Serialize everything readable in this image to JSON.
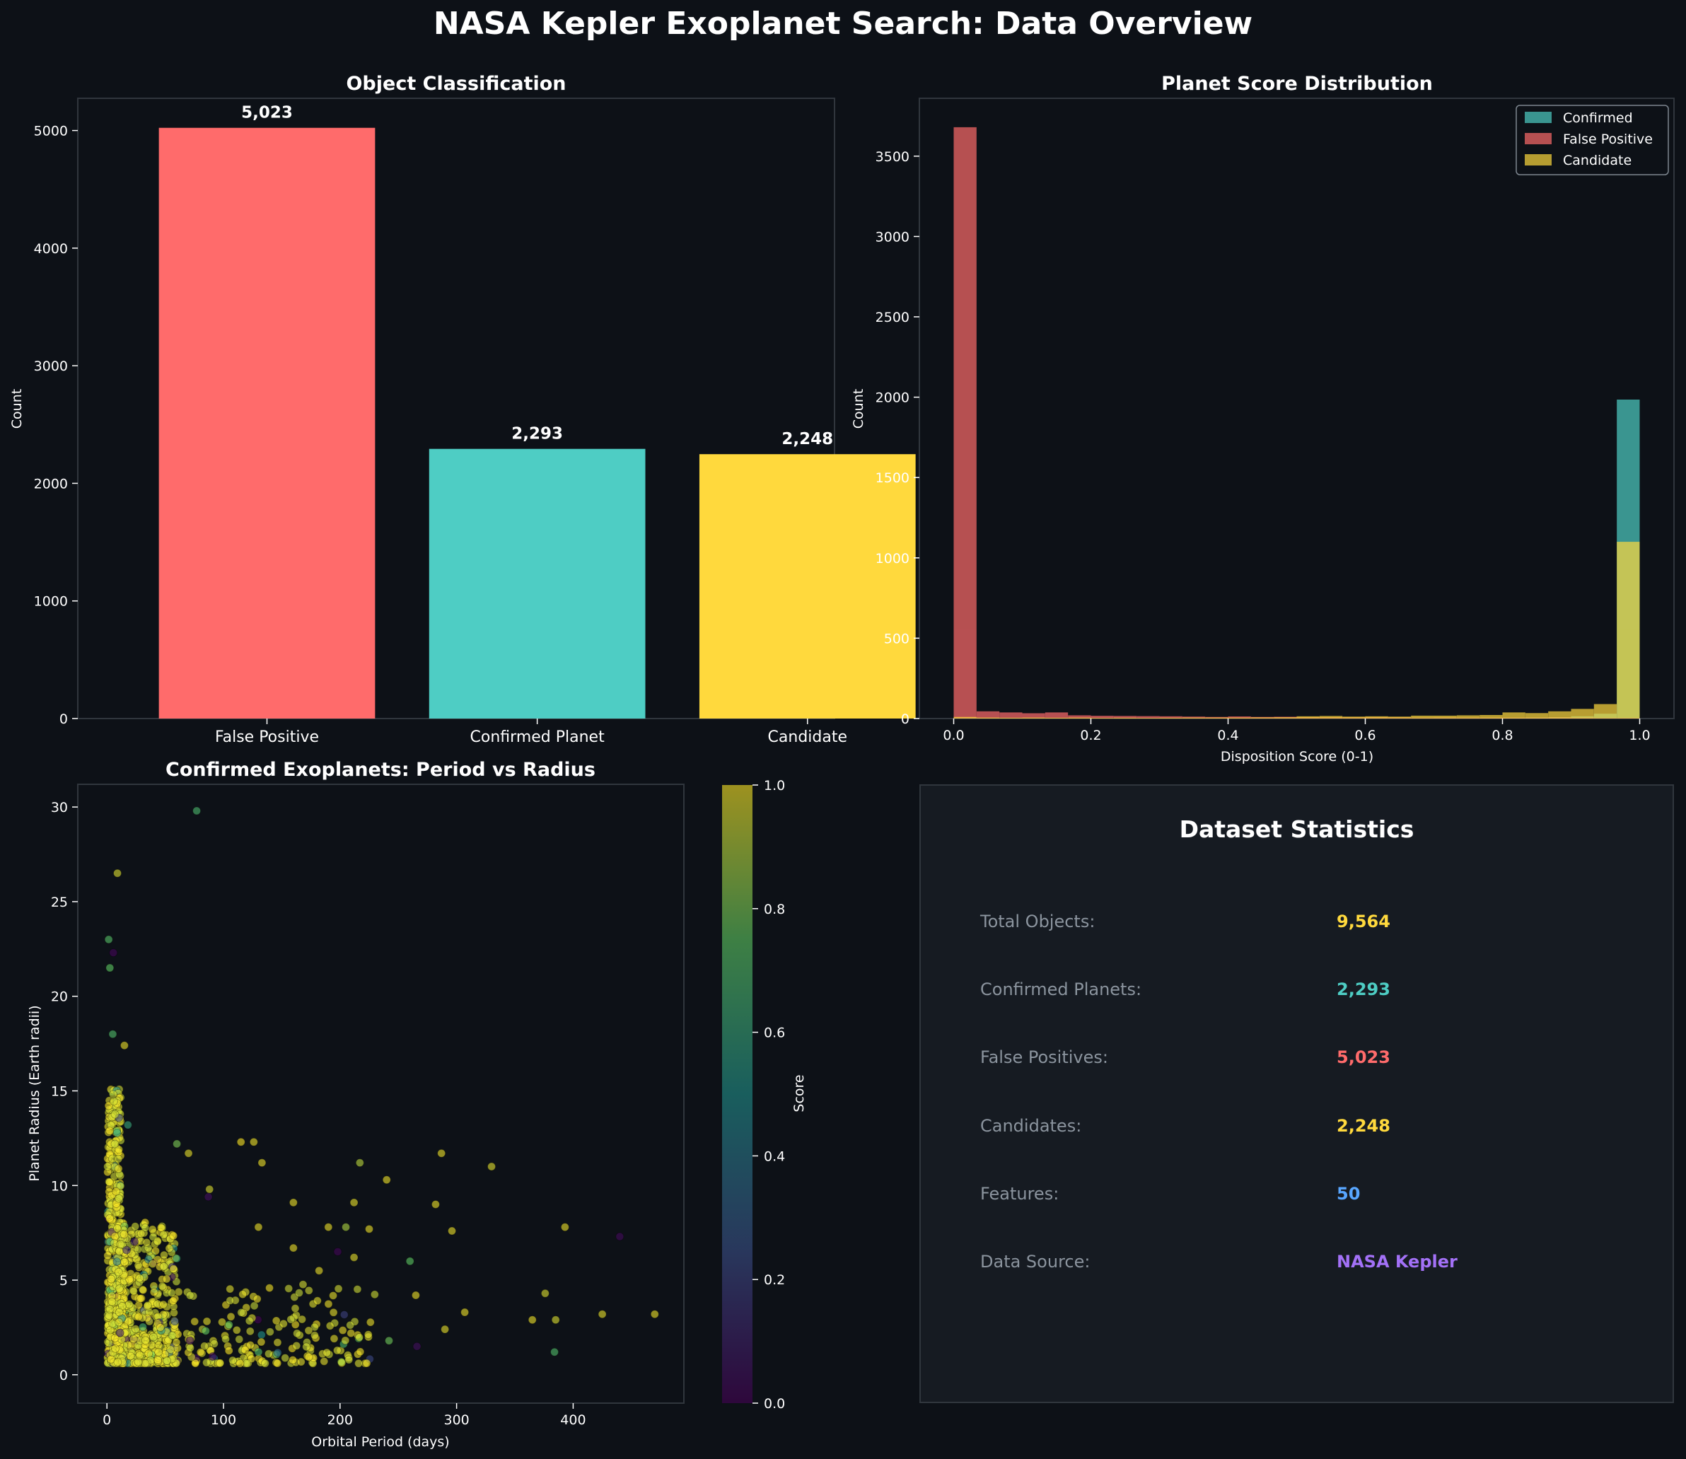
{
  "figure_title": "NASA Kepler Exoplanet Search: Data Overview",
  "colors": {
    "background": "#0d1117",
    "panel": "#0d1117",
    "false_positive": "#ff6b6b",
    "confirmed": "#4ecdc4",
    "candidate": "#ffd93d",
    "features": "#58a6ff",
    "source": "#a371f7"
  },
  "chart_data": [
    {
      "type": "bar",
      "title": "Object Classification",
      "categories": [
        "False Positive",
        "Confirmed Planet",
        "Candidate"
      ],
      "values": [
        5023,
        2293,
        2248
      ],
      "value_labels": [
        "5,023",
        "2,293",
        "2,248"
      ],
      "colors": [
        "#ff6b6b",
        "#4ecdc4",
        "#ffd93d"
      ],
      "xlabel": "",
      "ylabel": "Count",
      "ylim": [
        0,
        5274
      ],
      "yticks": [
        0,
        1000,
        2000,
        3000,
        4000,
        5000
      ]
    },
    {
      "type": "histogram",
      "title": "Planet Score Distribution",
      "xlabel": "Disposition Score (0-1)",
      "ylabel": "Count",
      "xlim": [
        -0.05,
        1.05
      ],
      "ylim": [
        0,
        3860
      ],
      "xticks": [
        0.0,
        0.2,
        0.4,
        0.6,
        0.8,
        1.0
      ],
      "xtick_labels": [
        "0.0",
        "0.2",
        "0.4",
        "0.6",
        "0.8",
        "1.0"
      ],
      "yticks": [
        0,
        500,
        1000,
        1500,
        2000,
        2500,
        3000,
        3500
      ],
      "bins": 30,
      "bin_range": [
        0,
        1
      ],
      "legend_position": "top-right",
      "series": [
        {
          "name": "Confirmed",
          "color": "#4ecdc4",
          "counts": [
            4,
            1,
            1,
            0,
            0,
            0,
            0,
            0,
            0,
            0,
            0,
            0,
            0,
            0,
            1,
            0,
            0,
            0,
            1,
            0,
            1,
            2,
            1,
            2,
            4,
            6,
            8,
            14,
            30,
            1985
          ]
        },
        {
          "name": "False Positive",
          "color": "#ff6b6b",
          "counts": [
            3680,
            45,
            38,
            33,
            38,
            20,
            17,
            16,
            15,
            14,
            12,
            10,
            13,
            10,
            11,
            9,
            9,
            8,
            9,
            8,
            6,
            7,
            6,
            6,
            6,
            6,
            7,
            6,
            4,
            4
          ]
        },
        {
          "name": "Candidate",
          "color": "#ffd93d",
          "counts": [
            10,
            6,
            5,
            6,
            5,
            6,
            4,
            5,
            4,
            5,
            6,
            6,
            6,
            7,
            8,
            14,
            16,
            12,
            14,
            12,
            18,
            18,
            20,
            22,
            38,
            34,
            45,
            60,
            90,
            1100
          ]
        }
      ]
    },
    {
      "type": "scatter",
      "title": "Confirmed Exoplanets: Period vs Radius",
      "xlabel": "Orbital Period (days)",
      "ylabel": "Planet Radius (Earth radii)",
      "xlim": [
        -25,
        495
      ],
      "ylim": [
        -1.5,
        31.2
      ],
      "xticks": [
        0,
        100,
        200,
        300,
        400
      ],
      "yticks": [
        0,
        5,
        10,
        15,
        20,
        25,
        30
      ],
      "colorbar_label": "Score",
      "colorbar_ticks": [
        "0.0",
        "0.2",
        "0.4",
        "0.6",
        "0.8",
        "1.0"
      ],
      "colorbar_range": [
        0,
        1
      ],
      "outliers": [
        {
          "x": 77,
          "y": 29.8,
          "score": 0.68
        },
        {
          "x": 9,
          "y": 26.5,
          "score": 0.95
        },
        {
          "x": 1.5,
          "y": 23.0,
          "score": 0.72
        },
        {
          "x": 5.5,
          "y": 22.3,
          "score": 0.02
        },
        {
          "x": 2.5,
          "y": 21.5,
          "score": 0.75
        },
        {
          "x": 5,
          "y": 18.0,
          "score": 0.7
        },
        {
          "x": 15,
          "y": 17.4,
          "score": 0.98
        },
        {
          "x": 18,
          "y": 13.2,
          "score": 0.6
        },
        {
          "x": 60,
          "y": 12.2,
          "score": 0.8
        },
        {
          "x": 70,
          "y": 11.7,
          "score": 0.97
        },
        {
          "x": 115,
          "y": 12.3,
          "score": 1.0
        },
        {
          "x": 126,
          "y": 12.3,
          "score": 0.98
        },
        {
          "x": 133,
          "y": 11.2,
          "score": 0.98
        },
        {
          "x": 217,
          "y": 11.2,
          "score": 0.9
        },
        {
          "x": 287,
          "y": 11.7,
          "score": 0.98
        },
        {
          "x": 330,
          "y": 11.0,
          "score": 0.96
        },
        {
          "x": 240,
          "y": 10.3,
          "score": 0.98
        },
        {
          "x": 88,
          "y": 9.8,
          "score": 0.95
        },
        {
          "x": 87,
          "y": 9.4,
          "score": 0.05
        },
        {
          "x": 212,
          "y": 9.1,
          "score": 0.97
        },
        {
          "x": 282,
          "y": 9.0,
          "score": 0.98
        },
        {
          "x": 160,
          "y": 9.1,
          "score": 0.98
        },
        {
          "x": 130,
          "y": 7.8,
          "score": 0.98
        },
        {
          "x": 198,
          "y": 6.5,
          "score": 0.02
        },
        {
          "x": 260,
          "y": 6.0,
          "score": 0.75
        },
        {
          "x": 393,
          "y": 7.8,
          "score": 0.98
        },
        {
          "x": 296,
          "y": 7.6,
          "score": 0.98
        },
        {
          "x": 440,
          "y": 7.3,
          "score": 0.03
        },
        {
          "x": 376,
          "y": 4.3,
          "score": 0.95
        },
        {
          "x": 365,
          "y": 2.9,
          "score": 0.98
        },
        {
          "x": 385,
          "y": 2.9,
          "score": 0.95
        },
        {
          "x": 425,
          "y": 3.2,
          "score": 0.97
        },
        {
          "x": 470,
          "y": 3.2,
          "score": 0.98
        },
        {
          "x": 384,
          "y": 1.2,
          "score": 0.7
        },
        {
          "x": 266,
          "y": 1.5,
          "score": 0.05
        },
        {
          "x": 242,
          "y": 1.8,
          "score": 0.78
        },
        {
          "x": 130,
          "y": 1.2,
          "score": 0.7
        },
        {
          "x": 290,
          "y": 2.4,
          "score": 0.97
        },
        {
          "x": 307,
          "y": 3.3,
          "score": 0.98
        },
        {
          "x": 265,
          "y": 4.2,
          "score": 0.98
        },
        {
          "x": 182,
          "y": 5.5,
          "score": 0.98
        },
        {
          "x": 160,
          "y": 6.7,
          "score": 0.98
        },
        {
          "x": 205,
          "y": 7.8,
          "score": 0.88
        },
        {
          "x": 225,
          "y": 7.7,
          "score": 0.98
        },
        {
          "x": 190,
          "y": 7.8,
          "score": 0.98
        },
        {
          "x": 212,
          "y": 6.2,
          "score": 0.97
        }
      ]
    }
  ],
  "stats": {
    "title": "Dataset Statistics",
    "rows": [
      {
        "label": "Total Objects:",
        "value": "9,564",
        "color": "#ffd93d"
      },
      {
        "label": "Confirmed Planets:",
        "value": "2,293",
        "color": "#4ecdc4"
      },
      {
        "label": "False Positives:",
        "value": "5,023",
        "color": "#ff6b6b"
      },
      {
        "label": "Candidates:",
        "value": "2,248",
        "color": "#ffd93d"
      },
      {
        "label": "Features:",
        "value": "50",
        "color": "#58a6ff"
      },
      {
        "label": "Data Source:",
        "value": "NASA Kepler",
        "color": "#a371f7"
      }
    ]
  }
}
